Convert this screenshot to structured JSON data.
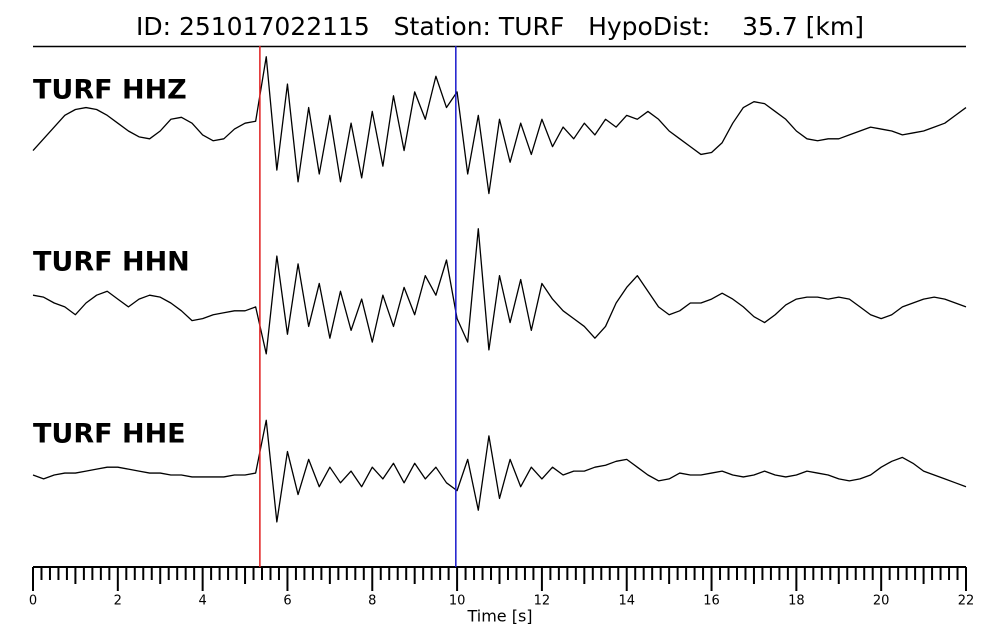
{
  "chart_data": {
    "type": "line",
    "title": "ID: 251017022115   Station: TURF   HypoDist:    35.7 [km]",
    "xlabel": "Time [s]",
    "xlim": [
      0,
      22
    ],
    "xticks": [
      0,
      2,
      4,
      6,
      8,
      10,
      12,
      14,
      16,
      18,
      20,
      22
    ],
    "xminorticks": [
      0.2,
      0.4,
      0.6,
      0.8,
      1,
      1.2,
      1.4,
      1.6,
      1.8,
      2.2,
      2.4,
      2.6,
      2.8,
      3,
      3.2,
      3.4,
      3.6,
      3.8,
      4.2,
      4.4,
      4.6,
      4.8,
      5,
      5.2,
      5.4,
      5.6,
      5.8,
      6.2,
      6.4,
      6.6,
      6.8,
      7,
      7.2,
      7.4,
      7.6,
      7.8,
      8.2,
      8.4,
      8.6,
      8.8,
      9,
      9.2,
      9.4,
      9.6,
      9.8,
      10.2,
      10.4,
      10.6,
      10.8,
      11,
      11.2,
      11.4,
      11.6,
      11.8,
      12.2,
      12.4,
      12.6,
      12.8,
      13,
      13.2,
      13.4,
      13.6,
      13.8,
      14.2,
      14.4,
      14.6,
      14.8,
      15,
      15.2,
      15.4,
      15.6,
      15.8,
      16.2,
      16.4,
      16.6,
      16.8,
      17,
      17.2,
      17.4,
      17.6,
      17.8,
      18.2,
      18.4,
      18.6,
      18.8,
      19,
      19.2,
      19.4,
      19.6,
      19.8,
      20.2,
      20.4,
      20.6,
      20.8,
      21,
      21.2,
      21.4,
      21.6,
      21.8
    ],
    "ylim": [
      -2.2,
      2.2
    ],
    "markers": [
      {
        "x": 5.35,
        "color": "#e02020"
      },
      {
        "x": 9.97,
        "color": "#1a1acc"
      }
    ],
    "label_color": "#4a9a00",
    "x": [
      0,
      0.25,
      0.5,
      0.75,
      1,
      1.25,
      1.5,
      1.75,
      2,
      2.25,
      2.5,
      2.75,
      3,
      3.25,
      3.5,
      3.75,
      4,
      4.25,
      4.5,
      4.75,
      5,
      5.25,
      5.5,
      5.75,
      6,
      6.25,
      6.5,
      6.75,
      7,
      7.25,
      7.5,
      7.75,
      8,
      8.25,
      8.5,
      8.75,
      9,
      9.25,
      9.5,
      9.75,
      10,
      10.25,
      10.5,
      10.75,
      11,
      11.25,
      11.5,
      11.75,
      12,
      12.25,
      12.5,
      12.75,
      13,
      13.25,
      13.5,
      13.75,
      14,
      14.25,
      14.5,
      14.75,
      15,
      15.25,
      15.5,
      15.75,
      16,
      16.25,
      16.5,
      16.75,
      17,
      17.25,
      17.5,
      17.75,
      18,
      18.25,
      18.5,
      18.75,
      19,
      19.25,
      19.5,
      19.75,
      20,
      20.25,
      20.5,
      20.75,
      21,
      21.25,
      21.5,
      21.75,
      22
    ],
    "series": [
      {
        "name": "TURF HHZ",
        "color": "#000000",
        "values": [
          -0.5,
          -0.2,
          0.1,
          0.4,
          0.55,
          0.6,
          0.55,
          0.4,
          0.2,
          0.0,
          -0.15,
          -0.2,
          0.0,
          0.3,
          0.35,
          0.2,
          -0.1,
          -0.25,
          -0.2,
          0.05,
          0.2,
          0.25,
          1.9,
          -1.0,
          1.2,
          -1.3,
          0.6,
          -1.1,
          0.4,
          -1.3,
          0.2,
          -1.2,
          0.5,
          -0.9,
          0.9,
          -0.5,
          1.0,
          0.3,
          1.4,
          0.6,
          1.0,
          -1.1,
          0.4,
          -1.6,
          0.3,
          -0.8,
          0.2,
          -0.6,
          0.3,
          -0.4,
          0.1,
          -0.2,
          0.2,
          -0.1,
          0.3,
          0.1,
          0.4,
          0.3,
          0.5,
          0.3,
          0.0,
          -0.2,
          -0.4,
          -0.6,
          -0.55,
          -0.3,
          0.2,
          0.6,
          0.75,
          0.7,
          0.5,
          0.3,
          0.0,
          -0.2,
          -0.25,
          -0.2,
          -0.2,
          -0.1,
          0.0,
          0.1,
          0.05,
          0.0,
          -0.1,
          -0.05,
          0.0,
          0.1,
          0.2,
          0.4,
          0.6
        ]
      },
      {
        "name": "TURF HHN",
        "color": "#000000",
        "values": [
          0.2,
          0.15,
          0.0,
          -0.1,
          -0.3,
          0.0,
          0.2,
          0.3,
          0.1,
          -0.1,
          0.1,
          0.2,
          0.15,
          0.0,
          -0.2,
          -0.45,
          -0.4,
          -0.3,
          -0.25,
          -0.2,
          -0.2,
          -0.1,
          -1.3,
          1.2,
          -0.8,
          1.0,
          -0.6,
          0.5,
          -0.9,
          0.3,
          -0.7,
          0.1,
          -1.0,
          0.2,
          -0.6,
          0.4,
          -0.3,
          0.7,
          0.2,
          1.1,
          -0.4,
          -1.0,
          1.9,
          -1.2,
          0.7,
          -0.5,
          0.6,
          -0.7,
          0.5,
          0.1,
          -0.2,
          -0.4,
          -0.6,
          -0.9,
          -0.6,
          0.0,
          0.4,
          0.7,
          0.3,
          -0.1,
          -0.3,
          -0.2,
          0.0,
          0.0,
          0.1,
          0.25,
          0.1,
          -0.1,
          -0.35,
          -0.5,
          -0.3,
          -0.05,
          0.1,
          0.15,
          0.15,
          0.1,
          0.15,
          0.1,
          -0.1,
          -0.3,
          -0.4,
          -0.3,
          -0.1,
          0.0,
          0.1,
          0.15,
          0.1,
          0.0,
          -0.1
        ]
      },
      {
        "name": "TURF HHE",
        "color": "#000000",
        "values": [
          0.0,
          -0.1,
          0.0,
          0.05,
          0.05,
          0.1,
          0.15,
          0.2,
          0.2,
          0.15,
          0.1,
          0.05,
          0.05,
          0.0,
          0.0,
          -0.05,
          -0.05,
          -0.05,
          -0.05,
          0.0,
          0.0,
          0.05,
          1.4,
          -1.2,
          0.6,
          -0.5,
          0.4,
          -0.3,
          0.2,
          -0.2,
          0.1,
          -0.3,
          0.2,
          -0.1,
          0.3,
          -0.2,
          0.3,
          -0.1,
          0.2,
          -0.2,
          -0.4,
          0.4,
          -0.9,
          1.0,
          -0.6,
          0.4,
          -0.3,
          0.2,
          -0.1,
          0.2,
          0.0,
          0.1,
          0.1,
          0.2,
          0.25,
          0.35,
          0.4,
          0.2,
          0.0,
          -0.15,
          -0.1,
          0.05,
          0.0,
          0.0,
          0.05,
          0.1,
          0.0,
          -0.05,
          0.0,
          0.1,
          0.0,
          -0.05,
          0.0,
          0.1,
          0.05,
          0.0,
          -0.1,
          -0.15,
          -0.1,
          0.0,
          0.2,
          0.35,
          0.45,
          0.3,
          0.1,
          0.0,
          -0.1,
          -0.2,
          -0.3
        ]
      }
    ]
  }
}
